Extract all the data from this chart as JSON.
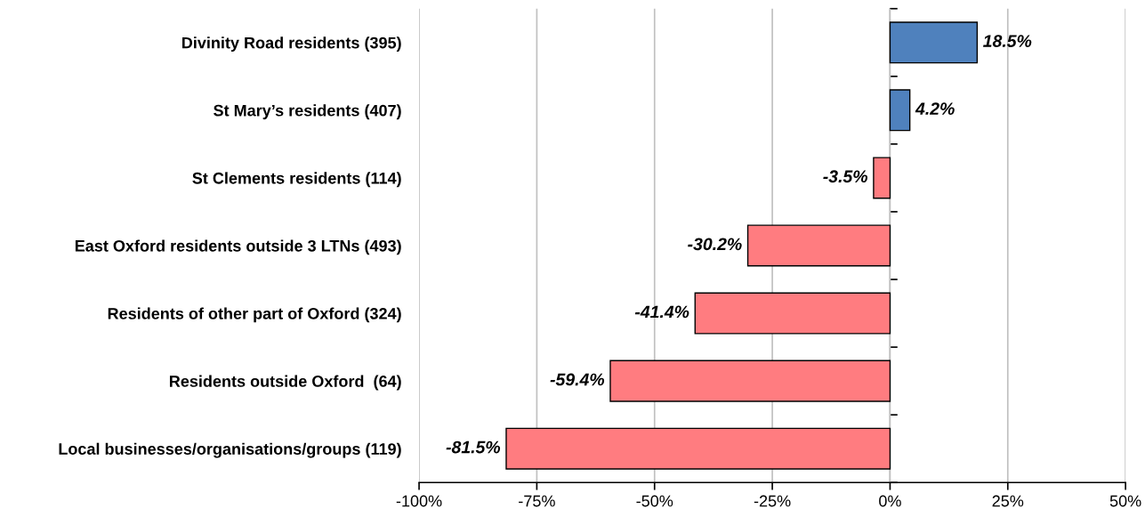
{
  "chart_data": {
    "type": "bar",
    "orientation": "horizontal",
    "categories": [
      "Divinity Road residents (395)",
      "St Mary’s residents (407)",
      "St Clements residents (114)",
      "East Oxford residents outside 3 LTNs (493)",
      "Residents of other part of Oxford (324)",
      "Residents outside Oxford  (64)",
      "Local businesses/organisations/groups (119)"
    ],
    "values": [
      18.5,
      4.2,
      -3.5,
      -30.2,
      -41.4,
      -59.4,
      -81.5
    ],
    "colors": [
      "#4f81bd",
      "#4f81bd",
      "#ff7c80",
      "#ff7c80",
      "#ff7c80",
      "#ff7c80",
      "#ff7c80"
    ],
    "value_labels": [
      "18.5%",
      "4.2%",
      "-3.5%",
      "-30.2%",
      "-41.4%",
      "-59.4%",
      "-81.5%"
    ],
    "xlim": [
      -100,
      50
    ],
    "xticks": [
      {
        "value": -100,
        "label": "-100%"
      },
      {
        "value": -75,
        "label": "-75%"
      },
      {
        "value": -50,
        "label": "-50%"
      },
      {
        "value": -25,
        "label": "-25%"
      },
      {
        "value": 0,
        "label": "0%"
      },
      {
        "value": 25,
        "label": "25%"
      },
      {
        "value": 50,
        "label": "50%"
      }
    ],
    "grid": "x"
  }
}
